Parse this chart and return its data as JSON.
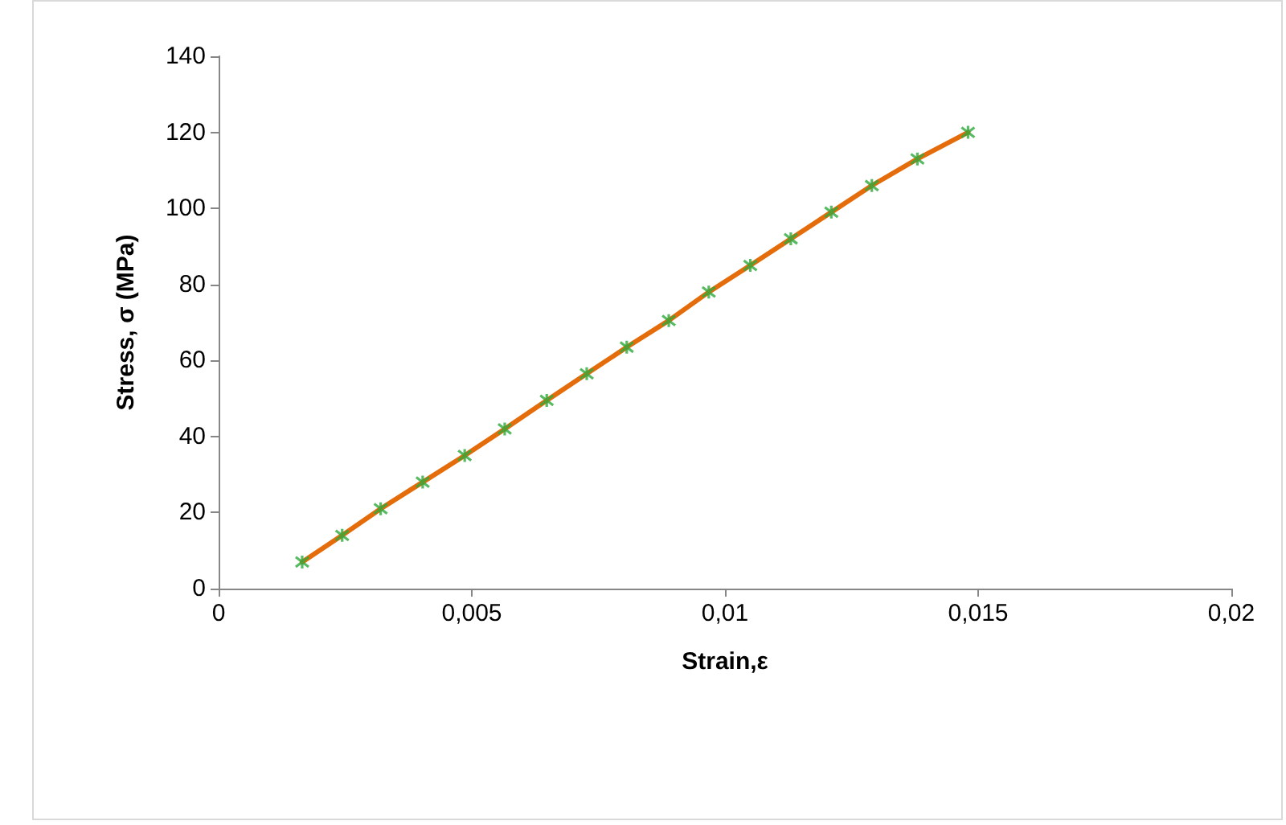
{
  "chart_data": {
    "type": "line",
    "xlabel": "Strain,ε",
    "ylabel": "Stress, σ (MPa)",
    "x": [
      0.00165,
      0.00244,
      0.0032,
      0.00403,
      0.00486,
      0.00565,
      0.00648,
      0.00727,
      0.00806,
      0.00889,
      0.00968,
      0.0105,
      0.0113,
      0.0121,
      0.0129,
      0.0138,
      0.0148
    ],
    "series": [
      {
        "color": "#e46c0a",
        "marker": "none",
        "values": [
          7,
          14,
          21,
          28,
          35,
          42,
          49.5,
          56.5,
          63.5,
          70.5,
          78,
          85,
          92,
          99,
          106,
          113,
          120
        ]
      },
      {
        "type": "scatter",
        "color": "#2eaa3c",
        "marker": "cross",
        "values": [
          7,
          14,
          21,
          28,
          35,
          42,
          49.5,
          56.5,
          63.5,
          70.5,
          78,
          85,
          92,
          99,
          106,
          113,
          120
        ]
      }
    ],
    "xlim": [
      0,
      0.02
    ],
    "xticks": [
      {
        "value": 0,
        "label": "0"
      },
      {
        "value": 0.005,
        "label": "0,005"
      },
      {
        "value": 0.01,
        "label": "0,01"
      },
      {
        "value": 0.015,
        "label": "0,015"
      },
      {
        "value": 0.02,
        "label": "0,02"
      }
    ],
    "ylim": [
      0,
      140
    ],
    "yticks": [
      0,
      20,
      40,
      60,
      80,
      100,
      120,
      140
    ],
    "grid": false
  }
}
